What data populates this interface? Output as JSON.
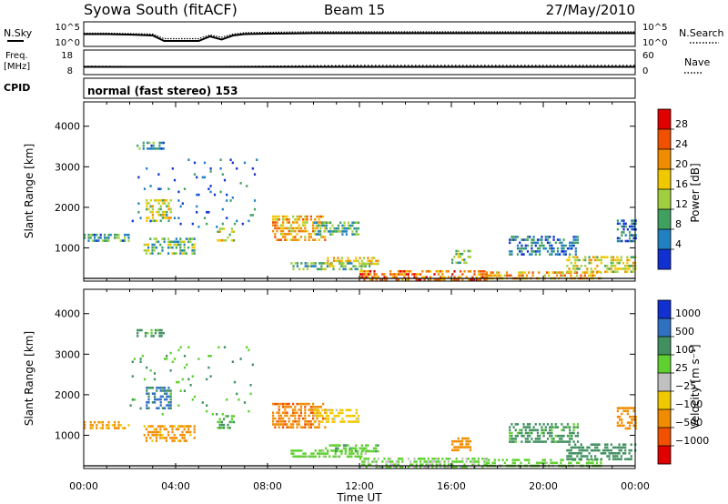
{
  "header": {
    "title": "Syowa South (fitACF)",
    "beam": "Beam 15",
    "date": "27/May/2010"
  },
  "top_panels": {
    "nsky_label": "N.Sky",
    "nsky_ticks": [
      "10^5",
      "10^0"
    ],
    "nsearch_label": "N.Search",
    "nsearch_ticks": [
      "10^5",
      "10^0"
    ],
    "freq_label_1": "Freq.",
    "freq_label_2": "[MHz]",
    "freq_ticks": [
      "18",
      "8"
    ],
    "nave_label": "Nave",
    "nave_ticks": [
      "60",
      "0"
    ],
    "cpid_label": "CPID",
    "cpid_text": "normal (fast stereo) 153"
  },
  "axes": {
    "ylabel": "Slant Range [km]",
    "yticks": [
      "4000",
      "3000",
      "2000",
      "1000"
    ],
    "xticks": [
      "00:00",
      "04:00",
      "08:00",
      "12:00",
      "16:00",
      "20:00",
      "00:00"
    ],
    "xlabel": "Time UT"
  },
  "colorbars": {
    "power": {
      "label": "Power [dB]",
      "ticks": [
        "28",
        "24",
        "20",
        "16",
        "12",
        "8",
        "4"
      ],
      "colors": [
        "#e00000",
        "#f05000",
        "#f08c00",
        "#f0c800",
        "#a0d040",
        "#40a060",
        "#2080c0",
        "#1030d0"
      ]
    },
    "velocity": {
      "label": "Velocity [m s⁻¹]",
      "ticks": [
        "1000",
        "500",
        "100",
        "25",
        "−25",
        "−100",
        "−500",
        "−1000"
      ],
      "colors": [
        "#1030d0",
        "#3070c0",
        "#409060",
        "#60d030",
        "#c0c0c0",
        "#f0c800",
        "#f08c00",
        "#f05000",
        "#e00000"
      ]
    }
  },
  "chart_data": [
    {
      "type": "line",
      "title": "N.Sky / N.Search",
      "x_hours_ut": [
        0,
        1,
        2,
        3,
        3.5,
        4,
        5,
        5.5,
        6,
        6.5,
        7,
        8,
        10,
        12,
        16,
        20,
        24
      ],
      "nsky_log10": [
        2.5,
        2.5,
        2.4,
        2.2,
        1.0,
        1.0,
        1.0,
        2.0,
        1.3,
        2.2,
        2.5,
        2.6,
        2.7,
        2.7,
        2.7,
        2.7,
        2.7
      ],
      "nsearch_log10": [
        2.7,
        2.7,
        2.6,
        2.5,
        1.5,
        1.5,
        1.5,
        2.3,
        1.8,
        2.5,
        2.8,
        2.9,
        3.0,
        3.0,
        3.0,
        3.0,
        3.0
      ],
      "ylim_log10": [
        0,
        5
      ]
    },
    {
      "type": "line",
      "title": "Freq / Nave",
      "x_hours_ut": [
        0,
        4,
        8,
        12,
        16,
        20,
        24
      ],
      "freq_mhz": [
        11,
        11,
        11,
        11,
        11,
        11,
        11
      ],
      "nave": [
        20,
        18,
        20,
        22,
        22,
        22,
        22
      ],
      "freq_ylim": [
        8,
        18
      ],
      "nave_ylim": [
        0,
        60
      ]
    },
    {
      "type": "heatmap",
      "title": "Power",
      "quantity": "Power [dB]",
      "xlim_hours_ut": [
        0,
        24
      ],
      "ylim_km": [
        180,
        4600
      ],
      "color_range_db": [
        0,
        32
      ],
      "regions": [
        {
          "t": [
            2.3,
            3.5
          ],
          "r": [
            3450,
            3620
          ],
          "v": 8
        },
        {
          "t": [
            2.7,
            3.8
          ],
          "r": [
            1650,
            2200
          ],
          "v": 16
        },
        {
          "t": [
            2.6,
            4.8
          ],
          "r": [
            850,
            1250
          ],
          "v": 12
        },
        {
          "t": [
            0.0,
            2.0
          ],
          "r": [
            1150,
            1350
          ],
          "v": 8
        },
        {
          "t": [
            5.8,
            6.5
          ],
          "r": [
            1200,
            1500
          ],
          "v": 16
        },
        {
          "t": [
            8.2,
            10.5
          ],
          "r": [
            1200,
            1800
          ],
          "v": 20
        },
        {
          "t": [
            10.0,
            12.0
          ],
          "r": [
            1350,
            1650
          ],
          "v": 10
        },
        {
          "t": [
            9.0,
            12.5
          ],
          "r": [
            450,
            650
          ],
          "v": 12
        },
        {
          "t": [
            10.5,
            12.8
          ],
          "r": [
            600,
            780
          ],
          "v": 18
        },
        {
          "t": [
            12.0,
            17.5
          ],
          "r": [
            230,
            450
          ],
          "v": 24
        },
        {
          "t": [
            16.0,
            16.8
          ],
          "r": [
            650,
            950
          ],
          "v": 12
        },
        {
          "t": [
            17.5,
            22.5
          ],
          "r": [
            250,
            420
          ],
          "v": 20
        },
        {
          "t": [
            18.5,
            21.5
          ],
          "r": [
            800,
            1300
          ],
          "v": 6
        },
        {
          "t": [
            21.0,
            24.0
          ],
          "r": [
            400,
            800
          ],
          "v": 16
        },
        {
          "t": [
            23.2,
            24.0
          ],
          "r": [
            1150,
            1700
          ],
          "v": 6
        },
        {
          "t": [
            2.0,
            7.5
          ],
          "r": [
            1500,
            3200
          ],
          "v": 6
        }
      ]
    },
    {
      "type": "heatmap",
      "title": "Velocity",
      "quantity": "Velocity [m s^-1]",
      "xlim_hours_ut": [
        0,
        24
      ],
      "ylim_km": [
        180,
        4600
      ],
      "color_range_ms": [
        -1000,
        1000
      ],
      "regions": [
        {
          "t": [
            2.3,
            3.5
          ],
          "r": [
            3450,
            3620
          ],
          "v": 150
        },
        {
          "t": [
            2.7,
            3.8
          ],
          "r": [
            1650,
            2200
          ],
          "v": 600
        },
        {
          "t": [
            2.6,
            4.8
          ],
          "r": [
            850,
            1250
          ],
          "v": -150
        },
        {
          "t": [
            0.0,
            2.0
          ],
          "r": [
            1150,
            1350
          ],
          "v": -150
        },
        {
          "t": [
            5.8,
            6.5
          ],
          "r": [
            1200,
            1500
          ],
          "v": 100
        },
        {
          "t": [
            8.2,
            10.5
          ],
          "r": [
            1200,
            1800
          ],
          "v": -400
        },
        {
          "t": [
            10.0,
            12.0
          ],
          "r": [
            1350,
            1650
          ],
          "v": -60
        },
        {
          "t": [
            9.0,
            12.5
          ],
          "r": [
            450,
            650
          ],
          "v": 60
        },
        {
          "t": [
            10.5,
            12.8
          ],
          "r": [
            600,
            780
          ],
          "v": 80
        },
        {
          "t": [
            12.0,
            17.5
          ],
          "r": [
            230,
            450
          ],
          "v": 40
        },
        {
          "t": [
            16.0,
            16.8
          ],
          "r": [
            650,
            950
          ],
          "v": -200
        },
        {
          "t": [
            17.5,
            22.5
          ],
          "r": [
            250,
            420
          ],
          "v": 60
        },
        {
          "t": [
            18.5,
            21.5
          ],
          "r": [
            800,
            1300
          ],
          "v": 150
        },
        {
          "t": [
            21.0,
            24.0
          ],
          "r": [
            400,
            800
          ],
          "v": 300
        },
        {
          "t": [
            23.2,
            24.0
          ],
          "r": [
            1150,
            1700
          ],
          "v": -300
        },
        {
          "t": [
            2.0,
            7.5
          ],
          "r": [
            1500,
            3200
          ],
          "v": 100
        }
      ]
    }
  ]
}
